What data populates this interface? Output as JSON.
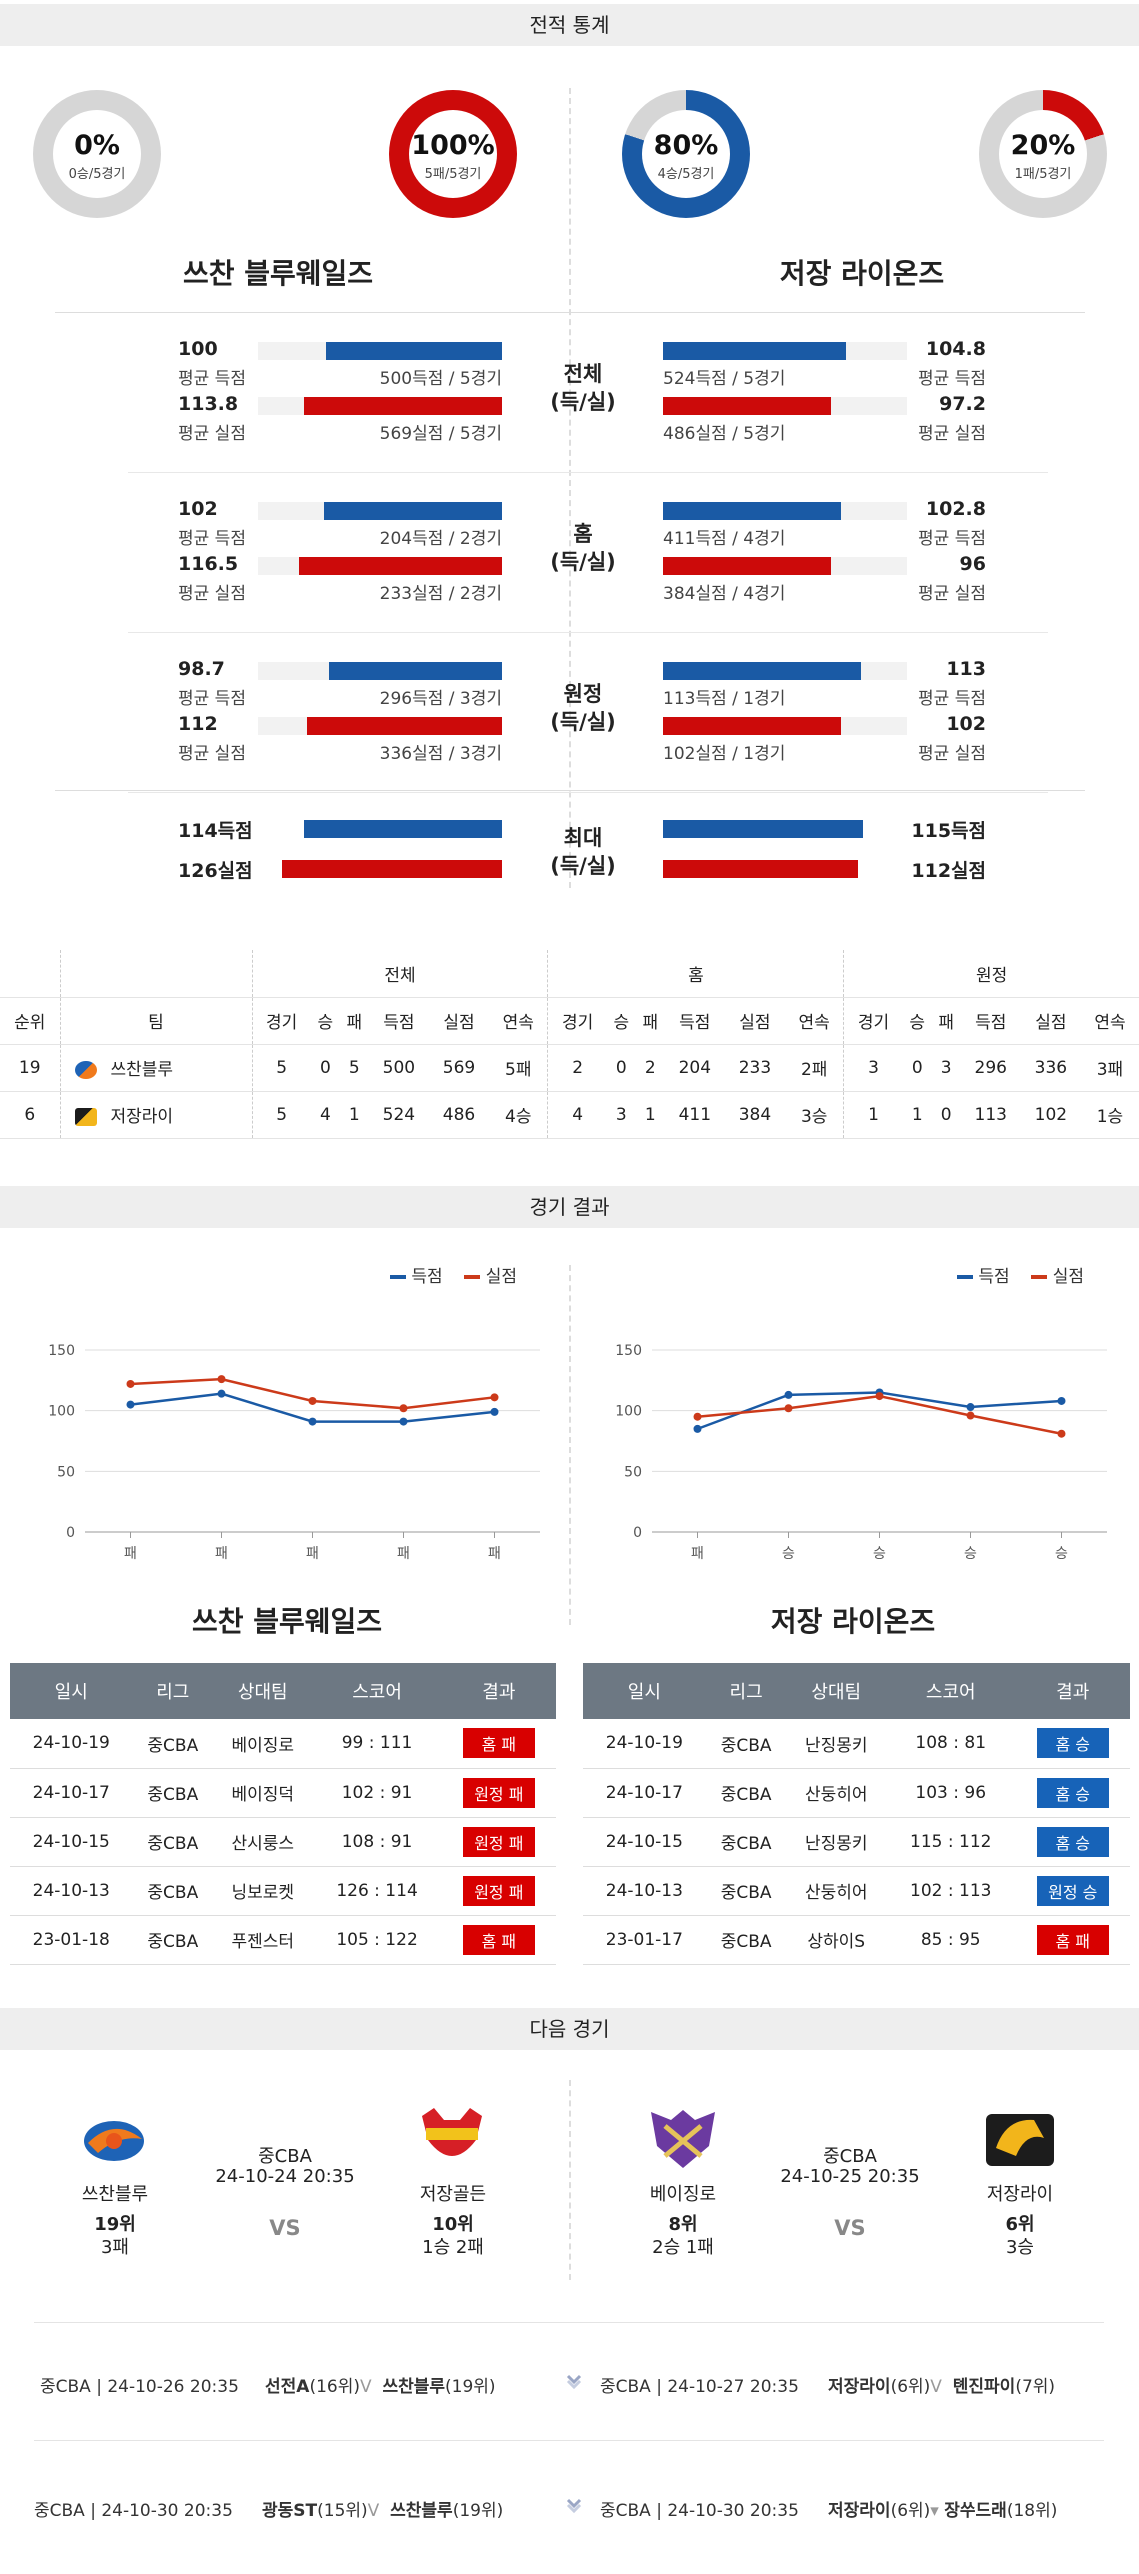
{
  "sections": {
    "stats": "전적 통계",
    "results": "경기 결과",
    "next": "다음 경기"
  },
  "donuts": [
    {
      "pct": "0%",
      "sub": "0승/5경기",
      "fraction": 0.0,
      "color": "#cc0a0a"
    },
    {
      "pct": "100%",
      "sub": "5패/5경기",
      "fraction": 1.0,
      "color": "#cc0a0a"
    },
    {
      "pct": "80%",
      "sub": "4승/5경기",
      "fraction": 0.8,
      "color": "#1a5aa5"
    },
    {
      "pct": "20%",
      "sub": "1패/5경기",
      "fraction": 0.2,
      "color": "#cc0a0a"
    }
  ],
  "teams": {
    "left": "쓰찬 블루웨일즈",
    "right": "저장 라이온즈"
  },
  "compare": [
    {
      "mid1": "전체",
      "mid2": "(득/실)",
      "left": [
        {
          "value": "100",
          "label": "평균 득점",
          "bar_label": "500득점 / 5경기",
          "fraction": 0.72,
          "color": "blue"
        },
        {
          "value": "113.8",
          "label": "평균 실점",
          "bar_label": "569실점 / 5경기",
          "fraction": 0.81,
          "color": "red"
        }
      ],
      "right": [
        {
          "value": "104.8",
          "label": "평균 득점",
          "bar_label": "524득점 / 5경기",
          "fraction": 0.75,
          "color": "blue"
        },
        {
          "value": "97.2",
          "label": "평균 실점",
          "bar_label": "486실점 / 5경기",
          "fraction": 0.69,
          "color": "red"
        }
      ]
    },
    {
      "mid1": "홈",
      "mid2": "(득/실)",
      "left": [
        {
          "value": "102",
          "label": "평균 득점",
          "bar_label": "204득점 / 2경기",
          "fraction": 0.73,
          "color": "blue"
        },
        {
          "value": "116.5",
          "label": "평균 실점",
          "bar_label": "233실점 / 2경기",
          "fraction": 0.83,
          "color": "red"
        }
      ],
      "right": [
        {
          "value": "102.8",
          "label": "평균 득점",
          "bar_label": "411득점 / 4경기",
          "fraction": 0.73,
          "color": "blue"
        },
        {
          "value": "96",
          "label": "평균 실점",
          "bar_label": "384실점 / 4경기",
          "fraction": 0.69,
          "color": "red"
        }
      ]
    },
    {
      "mid1": "원정",
      "mid2": "(득/실)",
      "left": [
        {
          "value": "98.7",
          "label": "평균 득점",
          "bar_label": "296득점 / 3경기",
          "fraction": 0.71,
          "color": "blue"
        },
        {
          "value": "112",
          "label": "평균 실점",
          "bar_label": "336실점 / 3경기",
          "fraction": 0.8,
          "color": "red"
        }
      ],
      "right": [
        {
          "value": "113",
          "label": "평균 득점",
          "bar_label": "113득점 / 1경기",
          "fraction": 0.81,
          "color": "blue"
        },
        {
          "value": "102",
          "label": "평균 실점",
          "bar_label": "102실점 / 1경기",
          "fraction": 0.73,
          "color": "red"
        }
      ]
    }
  ],
  "max_row": {
    "mid1": "최대",
    "mid2": "(득/실)",
    "left": [
      {
        "value": "114득점",
        "fraction": 0.81,
        "color": "blue"
      },
      {
        "value": "126실점",
        "fraction": 0.9,
        "color": "red"
      }
    ],
    "right": [
      {
        "value": "115득점",
        "fraction": 0.82,
        "color": "blue"
      },
      {
        "value": "112실점",
        "fraction": 0.8,
        "color": "red"
      }
    ]
  },
  "standings": {
    "groups": [
      "전체",
      "홈",
      "원정"
    ],
    "headers": [
      "순위",
      "팀",
      "경기",
      "승",
      "패",
      "득점",
      "실점",
      "연속",
      "경기",
      "승",
      "패",
      "득점",
      "실점",
      "연속",
      "경기",
      "승",
      "패",
      "득점",
      "실점",
      "연속"
    ],
    "rows": [
      [
        "19",
        "쓰찬블루",
        "5",
        "0",
        "5",
        "500",
        "569",
        "5패",
        "2",
        "0",
        "2",
        "204",
        "233",
        "2패",
        "3",
        "0",
        "3",
        "296",
        "336",
        "3패"
      ],
      [
        "6",
        "저장라이",
        "5",
        "4",
        "1",
        "524",
        "486",
        "4승",
        "4",
        "3",
        "1",
        "411",
        "384",
        "3승",
        "1",
        "1",
        "0",
        "113",
        "102",
        "1승"
      ]
    ]
  },
  "chart_data": [
    {
      "type": "line",
      "categories": [
        "패",
        "패",
        "패",
        "패",
        "패"
      ],
      "series": [
        {
          "name": "득점",
          "values": [
            105,
            114,
            91,
            91,
            99
          ],
          "color": "#1a5aa5"
        },
        {
          "name": "실점",
          "values": [
            122,
            126,
            108,
            102,
            111
          ],
          "color": "#cc3a1a"
        }
      ],
      "yticks": [
        "0",
        "50",
        "100",
        "150"
      ],
      "ylim": [
        0,
        150
      ]
    },
    {
      "type": "line",
      "categories": [
        "패",
        "승",
        "승",
        "승",
        "승"
      ],
      "series": [
        {
          "name": "득점",
          "values": [
            85,
            113,
            115,
            103,
            108
          ],
          "color": "#1a5aa5"
        },
        {
          "name": "실점",
          "values": [
            95,
            102,
            112,
            96,
            81
          ],
          "color": "#cc3a1a"
        }
      ],
      "yticks": [
        "0",
        "50",
        "100",
        "150"
      ],
      "ylim": [
        0,
        150
      ]
    }
  ],
  "results": {
    "headers": [
      "일시",
      "리그",
      "상대팀",
      "스코어",
      "결과"
    ],
    "left": [
      [
        "24-10-19",
        "중CBA",
        "베이징로",
        "99 : 111",
        "홈 패",
        "red"
      ],
      [
        "24-10-17",
        "중CBA",
        "베이징덕",
        "102 : 91",
        "원정 패",
        "red"
      ],
      [
        "24-10-15",
        "중CBA",
        "산시룽스",
        "108 : 91",
        "원정 패",
        "red"
      ],
      [
        "24-10-13",
        "중CBA",
        "닝보로켓",
        "126 : 114",
        "원정 패",
        "red"
      ],
      [
        "23-01-18",
        "중CBA",
        "푸젠스터",
        "105 : 122",
        "홈 패",
        "red"
      ]
    ],
    "right": [
      [
        "24-10-19",
        "중CBA",
        "난징몽키",
        "108 : 81",
        "홈 승",
        "blue"
      ],
      [
        "24-10-17",
        "중CBA",
        "산둥히어",
        "103 : 96",
        "홈 승",
        "blue"
      ],
      [
        "24-10-15",
        "중CBA",
        "난징몽키",
        "115 : 112",
        "홈 승",
        "blue"
      ],
      [
        "24-10-13",
        "중CBA",
        "산둥히어",
        "102 : 113",
        "원정 승",
        "blue"
      ],
      [
        "23-01-17",
        "중CBA",
        "상하이S",
        "85 : 95",
        "홈 패",
        "red"
      ]
    ]
  },
  "next_games": [
    {
      "home": {
        "name": "쓰찬블루",
        "rank": "19위",
        "streak": "3패"
      },
      "league": "중CBA",
      "datetime": "24-10-24 20:35",
      "vs": "VS",
      "away": {
        "name": "저장골든",
        "rank": "10위",
        "streak": "1승 2패"
      }
    },
    {
      "home": {
        "name": "베이징로",
        "rank": "8위",
        "streak": "2승 1패"
      },
      "league": "중CBA",
      "datetime": "24-10-25 20:35",
      "vs": "VS",
      "away": {
        "name": "저장라이",
        "rank": "6위",
        "streak": "3승"
      }
    }
  ],
  "upcoming": [
    {
      "info": "중CBA | 24-10-26 20:35",
      "t1": "선전A",
      "r1": "(16위)",
      "t2": "쓰찬블루",
      "r2": "(19위)"
    },
    {
      "info": "중CBA | 24-10-27 20:35",
      "t1": "저장라이",
      "r1": "(6위)",
      "t2": "톈진파이",
      "r2": "(7위)"
    },
    {
      "info": "중CBA | 24-10-30 20:35",
      "t1": "광동ST",
      "r1": "(15위)",
      "t2": "쓰찬블루",
      "r2": "(19위)"
    },
    {
      "info": "중CBA | 24-10-30 20:35",
      "t1": "저장라이",
      "r1": "(6위)",
      "t2": "장쑤드래",
      "r2": "(18위)"
    }
  ]
}
